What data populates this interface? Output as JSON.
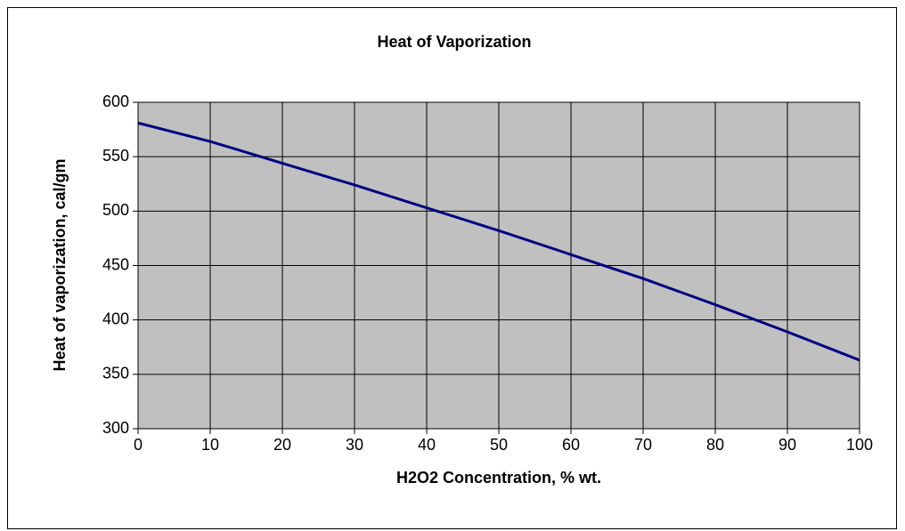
{
  "chart_data": {
    "type": "line",
    "title": "Heat of Vaporization",
    "x_label": "H2O2 Concentration, % wt.",
    "y_label": "Heat of vaporization, cal/gm",
    "x": [
      0,
      10,
      20,
      30,
      40,
      50,
      60,
      70,
      80,
      90,
      100
    ],
    "series": [
      {
        "name": "Heat of vaporization",
        "color": "#000080",
        "values": [
          581,
          564,
          544,
          524,
          503,
          482,
          460,
          438,
          414,
          389,
          363
        ]
      }
    ],
    "xlim": [
      0,
      100
    ],
    "xticks": [
      0,
      10,
      20,
      30,
      40,
      50,
      60,
      70,
      80,
      90,
      100
    ],
    "ylim": [
      300,
      600
    ],
    "yticks": [
      300,
      350,
      400,
      450,
      500,
      550,
      600
    ],
    "grid": true,
    "plot_background": "#c0c0c0"
  }
}
